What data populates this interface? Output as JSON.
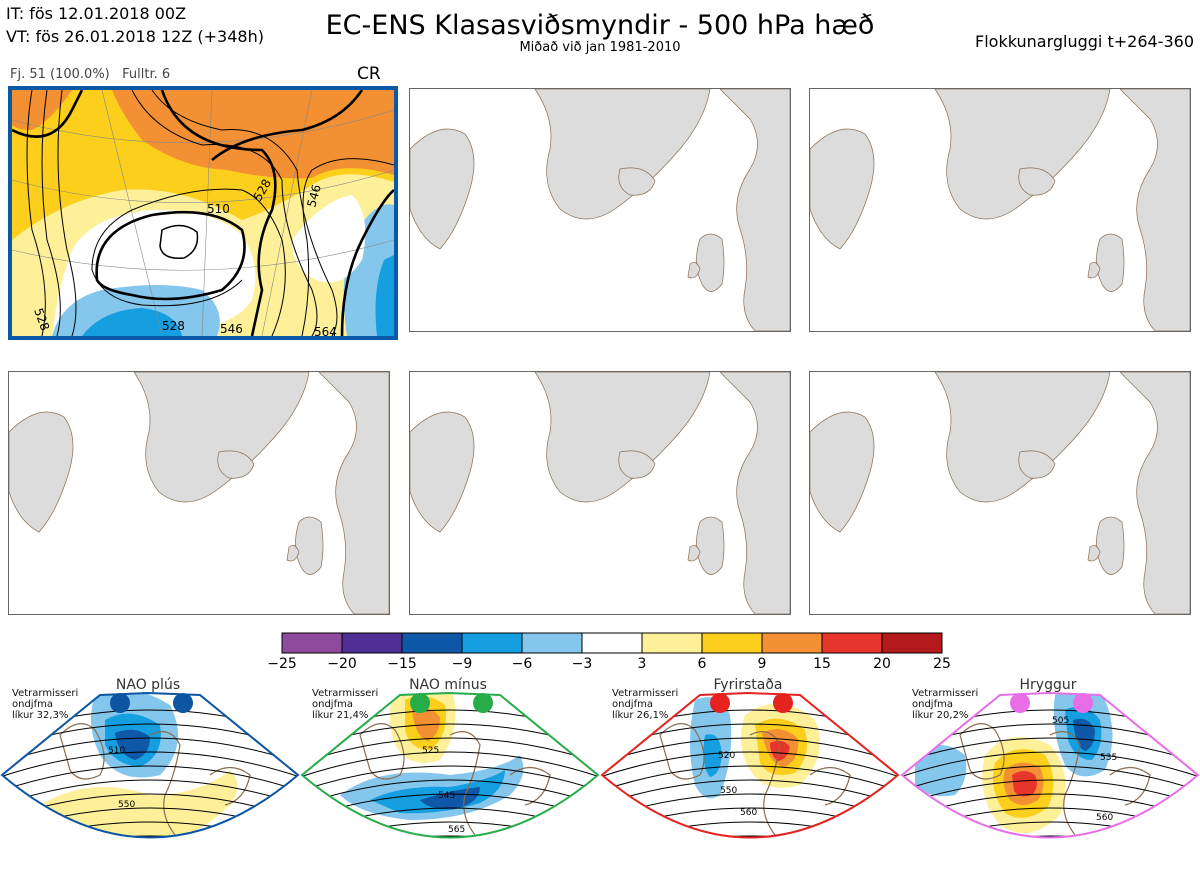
{
  "header": {
    "it_line": "IT: fös 12.01.2018 00Z",
    "vt_line": "VT: fös 26.01.2018 12Z  (+348h)",
    "title": "EC-ENS Klasasviðsmyndir - 500 hPa hæð",
    "subtitle": "Miðað við jan 1981-2010",
    "window": "Flokkunargluggi t+264-360"
  },
  "main_panel": {
    "info": "Fj. 51 (100.0%)   Fulltr. 6",
    "code": "CR",
    "contour_labels": [
      "510",
      "528",
      "546",
      "528",
      "546",
      "564",
      "528"
    ]
  },
  "colorbar": {
    "colors": [
      "#8e4a9c",
      "#4f2f95",
      "#0f58a8",
      "#159ee0",
      "#84c6ec",
      "#ffffff",
      "#fdf099",
      "#fbcf1c",
      "#f39033",
      "#e8352c",
      "#b41a1c"
    ],
    "ticks": [
      "−25",
      "−20",
      "−15",
      "−9",
      "−6",
      "−3",
      "3",
      "6",
      "9",
      "15",
      "20",
      "25"
    ]
  },
  "regimes": [
    {
      "name": "NAO plús",
      "info": [
        "Vetrarmisseri",
        "ondjfma",
        "líkur 32,3%"
      ],
      "color": "#0b55a3",
      "labels": [
        "510",
        "550"
      ]
    },
    {
      "name": "NAO mínus",
      "info": [
        "Vetrarmisseri",
        "ondjfma",
        "líkur 21,4%"
      ],
      "color": "#26ad4a",
      "labels": [
        "525",
        "545",
        "565"
      ]
    },
    {
      "name": "Fyrirstaða",
      "info": [
        "Vetrarmisseri",
        "ondjfma",
        "líkur 26,1%"
      ],
      "color": "#e42320",
      "labels": [
        "520",
        "550",
        "560"
      ]
    },
    {
      "name": "Hryggur",
      "info": [
        "Vetrarmisseri",
        "ondjfma",
        "líkur 20,2%"
      ],
      "color": "#e86ee8",
      "labels": [
        "505",
        "535",
        "560"
      ]
    }
  ]
}
